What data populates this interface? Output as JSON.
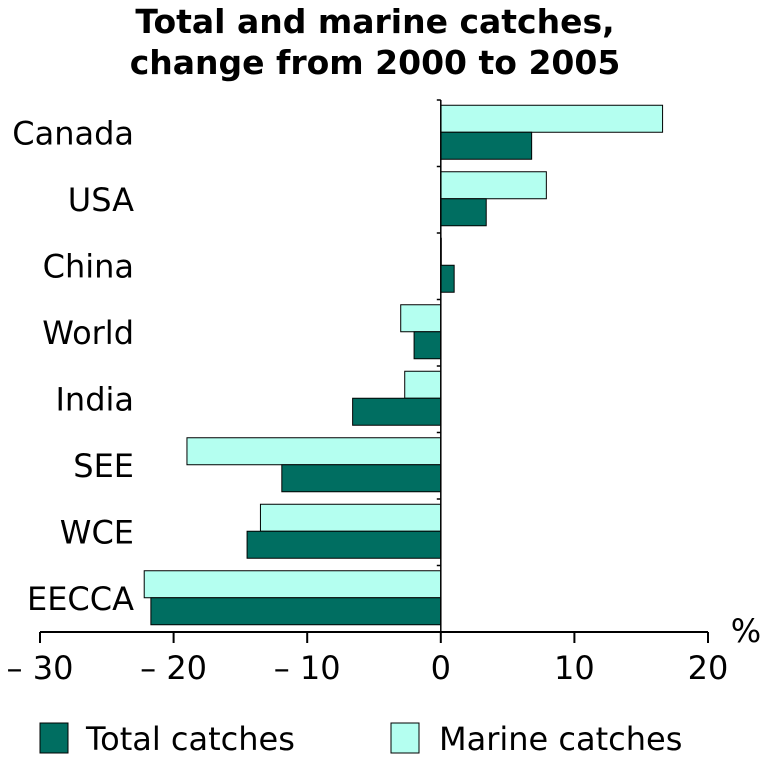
{
  "chart_data": {
    "type": "bar",
    "orientation": "horizontal",
    "title": [
      "Total and marine catches,",
      "change from 2000 to 2005"
    ],
    "unit": "%",
    "categories": [
      "Canada",
      "USA",
      "China",
      "World",
      "India",
      "SEE",
      "WCE",
      "EECCA"
    ],
    "series": [
      {
        "name": "Total catches",
        "color": "#006e61",
        "values": [
          6.8,
          3.4,
          1.0,
          -2.0,
          -6.6,
          -11.9,
          -14.5,
          -21.7
        ]
      },
      {
        "name": "Marine catches",
        "color": "#b4fff0",
        "values": [
          16.6,
          7.9,
          0.0,
          -3.0,
          -2.7,
          -19.0,
          -13.5,
          -22.2
        ]
      }
    ],
    "xlim": [
      -30,
      20
    ],
    "xticks": [
      -30,
      -20,
      -10,
      0,
      10,
      20
    ],
    "xtick_labels": [
      "– 30",
      "– 20",
      "– 10",
      "0",
      "10",
      "20"
    ],
    "grid": false,
    "legend_position": "bottom"
  }
}
